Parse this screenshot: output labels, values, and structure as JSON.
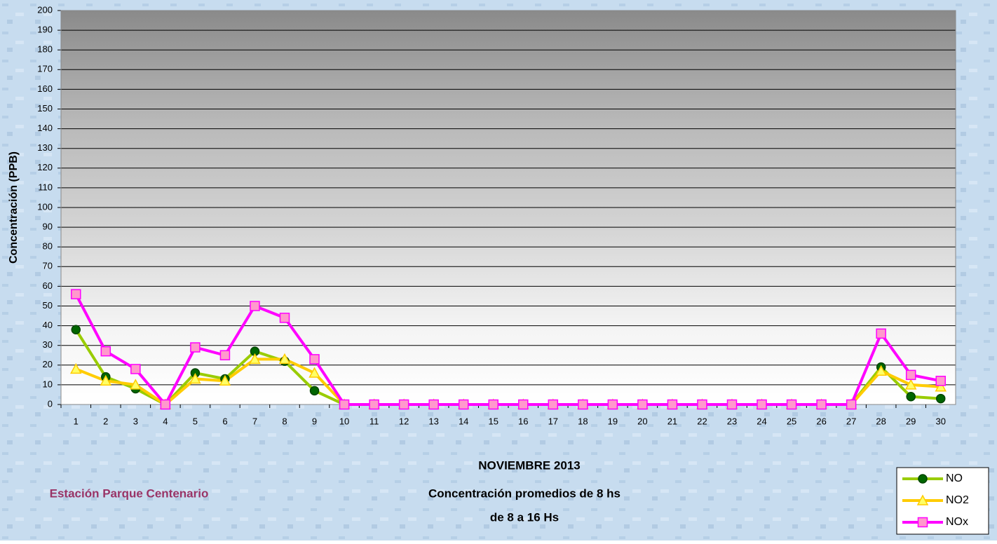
{
  "chart_data": {
    "type": "line",
    "title_lines": [
      "NOVIEMBRE 2013",
      "Concentración promedios de 8 hs",
      "de 8 a 16 Hs"
    ],
    "annotation": "Estación Parque Centenario",
    "y_label": "Concentración (PPB)",
    "categories": [
      "1",
      "2",
      "3",
      "4",
      "5",
      "6",
      "7",
      "8",
      "9",
      "10",
      "11",
      "12",
      "13",
      "14",
      "15",
      "16",
      "17",
      "18",
      "19",
      "20",
      "21",
      "22",
      "23",
      "24",
      "25",
      "26",
      "27",
      "28",
      "29",
      "30"
    ],
    "series": [
      {
        "name": "NO",
        "color": "#99cc00",
        "marker_color": "#006600",
        "marker": "circle",
        "values": [
          38,
          14,
          8,
          0,
          16,
          13,
          27,
          22,
          7,
          0,
          0,
          0,
          0,
          0,
          0,
          0,
          0,
          0,
          0,
          0,
          0,
          0,
          0,
          0,
          0,
          0,
          0,
          19,
          4,
          3
        ]
      },
      {
        "name": "NO2",
        "color": "#ffcc00",
        "marker_color": "#ffff66",
        "marker": "triangle",
        "values": [
          18,
          12,
          10,
          0,
          13,
          12,
          23,
          23,
          16,
          0,
          0,
          0,
          0,
          0,
          0,
          0,
          0,
          0,
          0,
          0,
          0,
          0,
          0,
          0,
          0,
          0,
          0,
          17,
          10,
          9
        ]
      },
      {
        "name": "NOx",
        "color": "#ff00ff",
        "marker_color": "#ff99cc",
        "marker": "square",
        "values": [
          56,
          27,
          18,
          0,
          29,
          25,
          50,
          44,
          23,
          0,
          0,
          0,
          0,
          0,
          0,
          0,
          0,
          0,
          0,
          0,
          0,
          0,
          0,
          0,
          0,
          0,
          0,
          36,
          15,
          12
        ]
      }
    ],
    "ylim": [
      0,
      200
    ],
    "yticks": [
      0,
      10,
      20,
      30,
      40,
      50,
      60,
      70,
      80,
      90,
      100,
      110,
      120,
      130,
      140,
      150,
      160,
      170,
      180,
      190,
      200
    ],
    "grid": true,
    "legend": "bottom-right"
  }
}
